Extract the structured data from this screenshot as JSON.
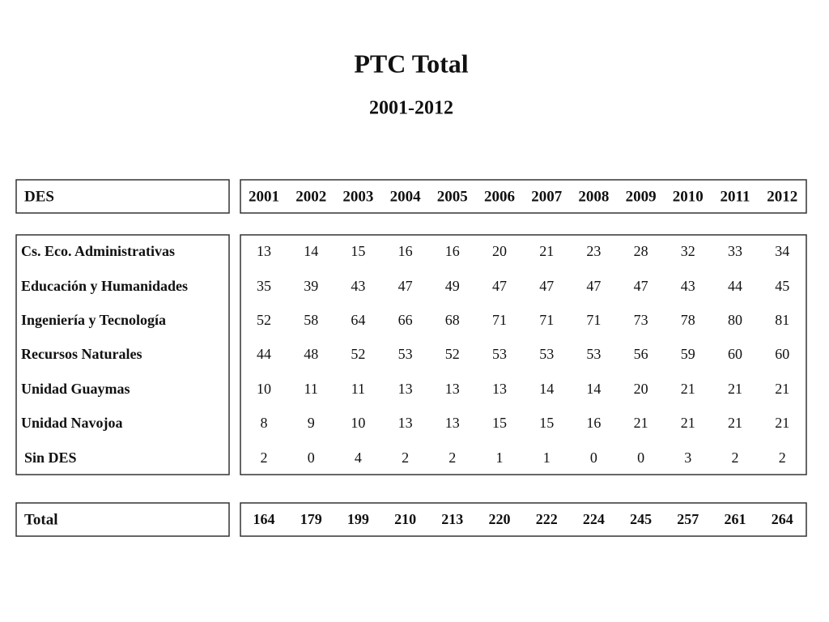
{
  "title": "PTC Total",
  "subtitle": "2001-2012",
  "table": {
    "header": {
      "label": "DES",
      "years": [
        2001,
        2002,
        2003,
        2004,
        2005,
        2006,
        2007,
        2008,
        2009,
        2010,
        2011,
        2012
      ]
    },
    "rows": [
      {
        "label": "Cs. Eco.  Administrativas",
        "values": [
          13,
          14,
          15,
          16,
          16,
          20,
          21,
          23,
          28,
          32,
          33,
          34
        ]
      },
      {
        "label": "Educación y Humanidades",
        "values": [
          35,
          39,
          43,
          47,
          49,
          47,
          47,
          47,
          47,
          43,
          44,
          45
        ]
      },
      {
        "label": "Ingeniería y Tecnología",
        "values": [
          52,
          58,
          64,
          66,
          68,
          71,
          71,
          71,
          73,
          78,
          80,
          81
        ]
      },
      {
        "label": "Recursos Naturales",
        "values": [
          44,
          48,
          52,
          53,
          52,
          53,
          53,
          53,
          56,
          59,
          60,
          60
        ]
      },
      {
        "label": "Unidad Guaymas",
        "values": [
          10,
          11,
          11,
          13,
          13,
          13,
          14,
          14,
          20,
          21,
          21,
          21
        ]
      },
      {
        "label": "Unidad Navojoa",
        "values": [
          8,
          9,
          10,
          13,
          13,
          15,
          15,
          16,
          21,
          21,
          21,
          21
        ]
      },
      {
        "label": "Sin DES",
        "values": [
          2,
          0,
          4,
          2,
          2,
          1,
          1,
          0,
          0,
          3,
          2,
          2
        ]
      }
    ],
    "total": {
      "label": "Total",
      "values": [
        164,
        179,
        199,
        210,
        213,
        220,
        222,
        224,
        245,
        257,
        261,
        264
      ]
    }
  }
}
